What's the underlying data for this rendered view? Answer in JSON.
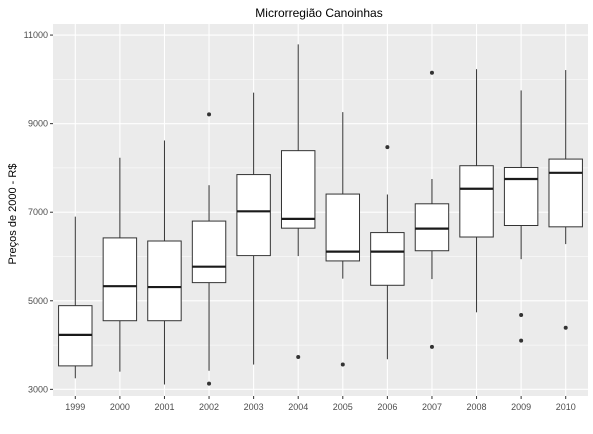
{
  "colors": {
    "panel_background": "#ebebeb",
    "grid_major": "#ffffff",
    "box_fill": "#ffffff",
    "box_stroke": "#333333",
    "median_stroke": "#1a1a1a",
    "outlier_fill": "#333333"
  },
  "chart_data": {
    "type": "box",
    "title": "Microrregião  Canoinhas",
    "xlabel": "",
    "ylabel": "Preços de 2000 - R$",
    "ylim": [
      2850,
      11250
    ],
    "yticks": [
      3000,
      5000,
      7000,
      9000,
      11000
    ],
    "grid": true,
    "legend": "none",
    "categories": [
      "1999",
      "2000",
      "2001",
      "2002",
      "2003",
      "2004",
      "2005",
      "2006",
      "2007",
      "2008",
      "2009",
      "2010"
    ],
    "boxes": [
      {
        "category": "1999",
        "whisker_low": 3250,
        "q1": 3530,
        "median": 4230,
        "q3": 4890,
        "whisker_high": 6900,
        "outliers": []
      },
      {
        "category": "2000",
        "whisker_low": 3400,
        "q1": 4550,
        "median": 5330,
        "q3": 6420,
        "whisker_high": 8230,
        "outliers": []
      },
      {
        "category": "2001",
        "whisker_low": 3110,
        "q1": 4550,
        "median": 5310,
        "q3": 6350,
        "whisker_high": 8620,
        "outliers": []
      },
      {
        "category": "2002",
        "whisker_low": 3420,
        "q1": 5410,
        "median": 5770,
        "q3": 6800,
        "whisker_high": 7610,
        "outliers": [
          9210,
          3130
        ]
      },
      {
        "category": "2003",
        "whisker_low": 3560,
        "q1": 6020,
        "median": 7020,
        "q3": 7850,
        "whisker_high": 9700,
        "outliers": []
      },
      {
        "category": "2004",
        "whisker_low": 6010,
        "q1": 6640,
        "median": 6850,
        "q3": 8390,
        "whisker_high": 10790,
        "outliers": [
          3730
        ]
      },
      {
        "category": "2005",
        "whisker_low": 5500,
        "q1": 5900,
        "median": 6110,
        "q3": 7410,
        "whisker_high": 9260,
        "outliers": [
          3560
        ]
      },
      {
        "category": "2006",
        "whisker_low": 3680,
        "q1": 5350,
        "median": 6110,
        "q3": 6540,
        "whisker_high": 7400,
        "outliers": [
          8470
        ]
      },
      {
        "category": "2007",
        "whisker_low": 5490,
        "q1": 6130,
        "median": 6630,
        "q3": 7190,
        "whisker_high": 7750,
        "outliers": [
          10150,
          3960
        ]
      },
      {
        "category": "2008",
        "whisker_low": 4740,
        "q1": 6440,
        "median": 7530,
        "q3": 8050,
        "whisker_high": 10230,
        "outliers": []
      },
      {
        "category": "2009",
        "whisker_low": 5940,
        "q1": 6700,
        "median": 7750,
        "q3": 8010,
        "whisker_high": 9750,
        "outliers": [
          4680,
          4100
        ]
      },
      {
        "category": "2010",
        "whisker_low": 6280,
        "q1": 6670,
        "median": 7890,
        "q3": 8200,
        "whisker_high": 10210,
        "outliers": [
          4390
        ]
      }
    ]
  }
}
